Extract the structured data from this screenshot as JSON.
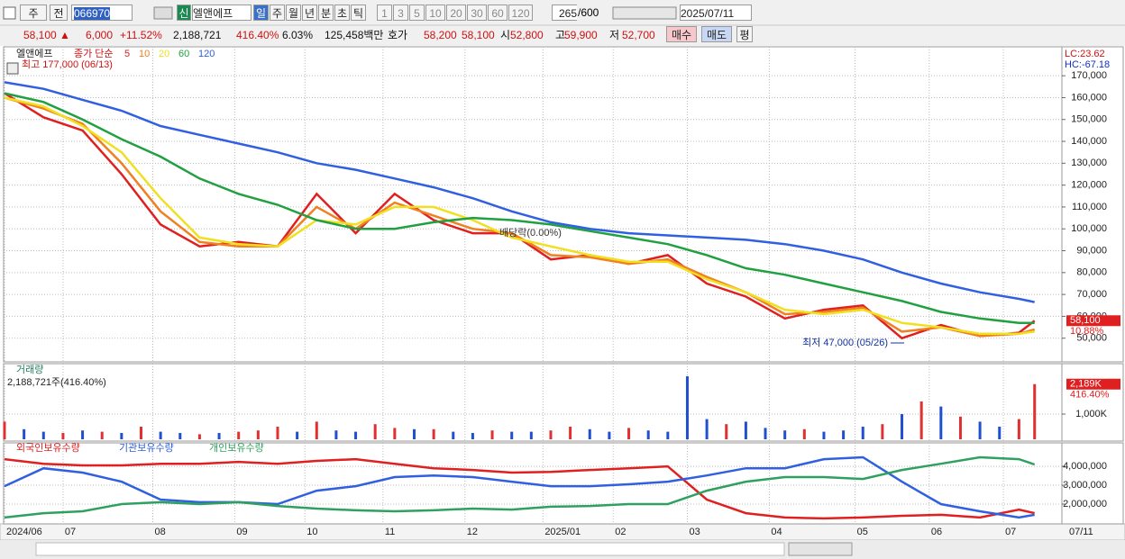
{
  "toolbar": {
    "view": "주",
    "prev": "전",
    "code": "066970",
    "market": "신",
    "name": "엘앤에프",
    "periods": [
      "일",
      "주",
      "월",
      "년",
      "분",
      "초",
      "틱"
    ],
    "intervals": [
      "1",
      "3",
      "5",
      "10",
      "20",
      "30",
      "60",
      "120"
    ],
    "count": "265",
    "max_count": "/600",
    "date": "2025/07/11"
  },
  "info_bar": {
    "price": "58,100",
    "arrow": "▲",
    "change": "6,000",
    "change_pct": "+11.52%",
    "volume": "2,188,721",
    "volume_ratio": "416.40%",
    "turnover": "6.03%",
    "amount": "125,458백만",
    "quote_label": "호가",
    "ask": "58,200",
    "bid": "58,100",
    "open_label": "시",
    "open": "52,800",
    "high_label": "고",
    "high": "59,900",
    "low_label": "저",
    "low": "52,700",
    "buy": "매수",
    "sell": "매도",
    "avg": "평"
  },
  "chart_data": [
    {
      "type": "line",
      "name": "엘앤에프",
      "legend_title": "종가 단순",
      "lc": "LC:23.62",
      "hc": "HC:-67.18",
      "current_label": "58,100",
      "change_label": "10.88%",
      "annotations": [
        "최고 177,000 (06/13)",
        "최저 47,000 (05/26)",
        "배당락(0.00%)"
      ],
      "x": [
        0,
        10,
        20,
        30,
        40,
        50,
        60,
        70,
        80,
        90,
        100,
        110,
        120,
        130,
        140,
        150,
        160,
        170,
        180,
        190,
        200,
        210,
        220,
        230,
        240,
        250,
        260,
        264
      ],
      "xlim": [
        0,
        271
      ],
      "xticks": [
        {
          "value": 0,
          "label": "2024/06"
        },
        {
          "value": 15,
          "label": "07"
        },
        {
          "value": 38,
          "label": "08"
        },
        {
          "value": 59,
          "label": "09"
        },
        {
          "value": 77,
          "label": "10"
        },
        {
          "value": 97,
          "label": "11"
        },
        {
          "value": 118,
          "label": "12"
        },
        {
          "value": 138,
          "label": "2025/01"
        },
        {
          "value": 156,
          "label": "02"
        },
        {
          "value": 175,
          "label": "03"
        },
        {
          "value": 196,
          "label": "04"
        },
        {
          "value": 218,
          "label": "05"
        },
        {
          "value": 237,
          "label": "06"
        },
        {
          "value": 256,
          "label": "07"
        }
      ],
      "ylim": [
        40000,
        182000
      ],
      "yticks": [
        {
          "value": 50000,
          "label": "50,000"
        },
        {
          "value": 60000,
          "label": "60,000"
        },
        {
          "value": 70000,
          "label": "70,000"
        },
        {
          "value": 80000,
          "label": "80,000"
        },
        {
          "value": 90000,
          "label": "90,000"
        },
        {
          "value": 100000,
          "label": "100,000"
        },
        {
          "value": 110000,
          "label": "110,000"
        },
        {
          "value": 120000,
          "label": "120,000"
        },
        {
          "value": 130000,
          "label": "130,000"
        },
        {
          "value": 140000,
          "label": "140,000"
        },
        {
          "value": 150000,
          "label": "150,000"
        },
        {
          "value": 160000,
          "label": "160,000"
        },
        {
          "value": 170000,
          "label": "170,000"
        }
      ],
      "grid": true,
      "series": [
        {
          "name": "5",
          "color": "#e02020",
          "values": [
            162000,
            151000,
            145000,
            125000,
            102000,
            92000,
            94000,
            92000,
            116000,
            98000,
            116000,
            104000,
            98000,
            98000,
            86000,
            88000,
            84000,
            88000,
            75000,
            69000,
            59000,
            63000,
            65000,
            50000,
            56000,
            51000,
            52500,
            58000
          ]
        },
        {
          "name": "10",
          "color": "#f08020",
          "values": [
            160000,
            155000,
            148000,
            130000,
            108000,
            94000,
            92000,
            92000,
            110000,
            100000,
            112000,
            106000,
            100000,
            98000,
            88000,
            87000,
            84000,
            86000,
            78000,
            71000,
            61000,
            62000,
            64000,
            53000,
            55000,
            51000,
            52000,
            54000
          ]
        },
        {
          "name": "20",
          "color": "#f0e020",
          "values": [
            160000,
            156000,
            147000,
            135000,
            114000,
            96000,
            93000,
            92000,
            104000,
            102000,
            110000,
            110000,
            104000,
            96000,
            92000,
            88000,
            85000,
            85000,
            77000,
            71000,
            63000,
            61000,
            63000,
            57000,
            55000,
            52000,
            52000,
            53000
          ]
        },
        {
          "name": "60",
          "color": "#20a040",
          "values": [
            162000,
            158000,
            150000,
            141000,
            133000,
            123000,
            116000,
            111000,
            104000,
            100000,
            100000,
            103000,
            105000,
            104000,
            102000,
            99000,
            96000,
            93000,
            88000,
            82000,
            79000,
            75000,
            71000,
            67000,
            62000,
            59000,
            57000,
            57000
          ]
        },
        {
          "name": "120",
          "color": "#3060e0",
          "values": [
            167000,
            164000,
            159000,
            154000,
            147000,
            143000,
            139000,
            135000,
            130000,
            127000,
            123000,
            119000,
            114000,
            108000,
            103000,
            100000,
            98000,
            97000,
            96000,
            95000,
            93000,
            90000,
            86000,
            80000,
            75000,
            71000,
            68000,
            66500
          ]
        }
      ]
    },
    {
      "type": "bar",
      "title": "거래량",
      "subtitle": "2,188,721주(416.40%)",
      "last_label": "2,189K",
      "last_ratio": "416.40%",
      "x": [
        0,
        5,
        10,
        15,
        20,
        25,
        30,
        35,
        40,
        45,
        50,
        55,
        60,
        65,
        70,
        75,
        80,
        85,
        90,
        95,
        100,
        105,
        110,
        115,
        120,
        125,
        130,
        135,
        140,
        145,
        150,
        155,
        160,
        165,
        170,
        175,
        180,
        185,
        190,
        195,
        200,
        205,
        210,
        215,
        220,
        225,
        230,
        235,
        240,
        245,
        250,
        255,
        260,
        264
      ],
      "xlim": [
        0,
        271
      ],
      "ylim": [
        0,
        2930
      ],
      "yticks": [
        {
          "value": 1000,
          "label": "1,000K"
        }
      ],
      "values": [
        700,
        400,
        300,
        250,
        350,
        300,
        250,
        500,
        300,
        250,
        200,
        250,
        300,
        350,
        500,
        300,
        700,
        350,
        300,
        600,
        450,
        400,
        400,
        300,
        250,
        350,
        300,
        300,
        350,
        500,
        400,
        300,
        450,
        350,
        300,
        2500,
        800,
        600,
        700,
        450,
        350,
        400,
        300,
        350,
        500,
        600,
        1000,
        1500,
        1300,
        900,
        700,
        500,
        800,
        2189
      ],
      "colors": [
        "#e03030",
        "#2050d0",
        "#2050d0",
        "#e03030",
        "#2050d0",
        "#e03030",
        "#2050d0",
        "#e03030",
        "#2050d0",
        "#2050d0",
        "#e03030",
        "#2050d0",
        "#e03030",
        "#e03030",
        "#e03030",
        "#2050d0",
        "#e03030",
        "#2050d0",
        "#2050d0",
        "#e03030",
        "#e03030",
        "#2050d0",
        "#e03030",
        "#2050d0",
        "#2050d0",
        "#e03030",
        "#2050d0",
        "#2050d0",
        "#e03030",
        "#e03030",
        "#2050d0",
        "#2050d0",
        "#e03030",
        "#2050d0",
        "#2050d0",
        "#2050d0",
        "#2050d0",
        "#e03030",
        "#2050d0",
        "#2050d0",
        "#2050d0",
        "#e03030",
        "#2050d0",
        "#2050d0",
        "#2050d0",
        "#e03030",
        "#2050d0",
        "#e03030",
        "#2050d0",
        "#e03030",
        "#2050d0",
        "#2050d0",
        "#e03030",
        "#e03030"
      ]
    },
    {
      "type": "line",
      "x_end_label": "07/11",
      "x": [
        0,
        10,
        20,
        30,
        40,
        50,
        60,
        70,
        80,
        90,
        100,
        110,
        120,
        130,
        140,
        150,
        160,
        170,
        180,
        190,
        200,
        210,
        220,
        230,
        240,
        250,
        260,
        264
      ],
      "xlim": [
        0,
        271
      ],
      "ylim": [
        950000,
        5150000
      ],
      "yticks": [
        {
          "value": 2000000,
          "label": "2,000,000"
        },
        {
          "value": 3000000,
          "label": "3,000,000"
        },
        {
          "value": 4000000,
          "label": "4,000,000"
        }
      ],
      "series": [
        {
          "name": "외국인보유수량",
          "color": "#e02020",
          "values": [
            4380000,
            4140000,
            4050000,
            4050000,
            4140000,
            4140000,
            4240000,
            4140000,
            4290000,
            4380000,
            4140000,
            3900000,
            3810000,
            3670000,
            3710000,
            3810000,
            3900000,
            4000000,
            2240000,
            1520000,
            1290000,
            1240000,
            1290000,
            1380000,
            1430000,
            1290000,
            1710000,
            1520000
          ]
        },
        {
          "name": "기관보유수량",
          "color": "#3060e0",
          "values": [
            2950000,
            3900000,
            3670000,
            3190000,
            2240000,
            2100000,
            2100000,
            2000000,
            2710000,
            2950000,
            3430000,
            3520000,
            3430000,
            3190000,
            2950000,
            2950000,
            3050000,
            3190000,
            3520000,
            3900000,
            3900000,
            4380000,
            4480000,
            3190000,
            2000000,
            1620000,
            1290000,
            1430000
          ]
        },
        {
          "name": "개인보유수량",
          "color": "#30a060",
          "values": [
            1290000,
            1520000,
            1620000,
            2000000,
            2100000,
            2000000,
            2100000,
            1900000,
            1760000,
            1670000,
            1620000,
            1670000,
            1760000,
            1710000,
            1860000,
            1900000,
            2000000,
            2000000,
            2710000,
            3190000,
            3430000,
            3430000,
            3330000,
            3810000,
            4140000,
            4480000,
            4380000,
            4100000
          ]
        }
      ]
    }
  ]
}
